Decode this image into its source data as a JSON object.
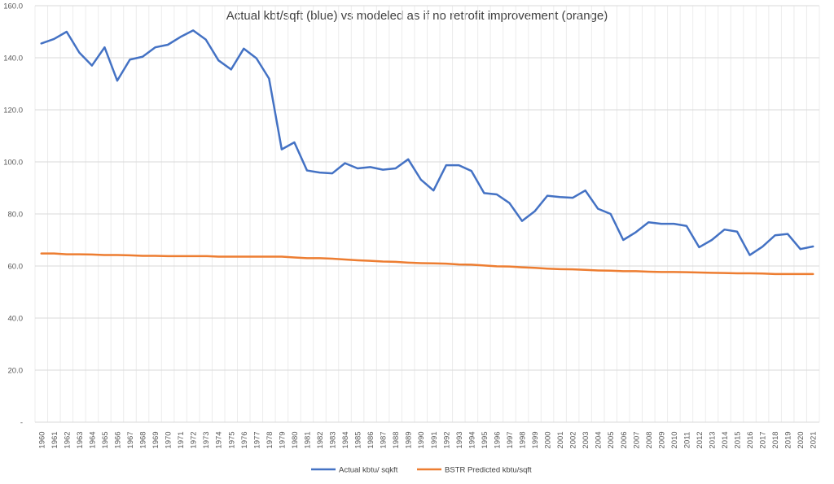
{
  "chart_data": {
    "type": "line",
    "title": "Actual kbt/sqft (blue) vs modeled as if no retrofit improvement (orange)",
    "xlabel": "",
    "ylabel": "",
    "ylim": [
      0,
      160
    ],
    "y_ticks": [
      "-",
      "20.0",
      "40.0",
      "60.0",
      "80.0",
      "100.0",
      "120.0",
      "140.0",
      "160.0"
    ],
    "grid": true,
    "legend_position": "bottom",
    "categories": [
      "1960",
      "1961",
      "1962",
      "1963",
      "1964",
      "1965",
      "1966",
      "1967",
      "1968",
      "1969",
      "1970",
      "1971",
      "1972",
      "1973",
      "1974",
      "1975",
      "1976",
      "1977",
      "1978",
      "1979",
      "1980",
      "1981",
      "1982",
      "1983",
      "1984",
      "1985",
      "1986",
      "1987",
      "1988",
      "1989",
      "1990",
      "1991",
      "1992",
      "1993",
      "1994",
      "1995",
      "1996",
      "1997",
      "1998",
      "1999",
      "2000",
      "2001",
      "2002",
      "2003",
      "2004",
      "2005",
      "2006",
      "2007",
      "2008",
      "2009",
      "2010",
      "2011",
      "2012",
      "2013",
      "2014",
      "2015",
      "2016",
      "2017",
      "2018",
      "2019",
      "2020",
      "2021"
    ],
    "series": [
      {
        "name": "Actual kbtu/ sqkft",
        "color": "#4472c4",
        "values": [
          145.5,
          147.2,
          150.0,
          142.0,
          137.0,
          144.0,
          131.2,
          139.3,
          140.4,
          144.0,
          145.0,
          148.0,
          150.5,
          147.0,
          139.0,
          135.5,
          143.5,
          139.8,
          132.0,
          104.8,
          107.5,
          96.7,
          95.9,
          95.6,
          99.5,
          97.5,
          98.0,
          97.0,
          97.5,
          101.0,
          93.2,
          89.0,
          98.7,
          98.7,
          96.5,
          88.0,
          87.5,
          84.2,
          77.3,
          81.0,
          87.0,
          86.5,
          86.2,
          89.0,
          82.0,
          80.0,
          70.0,
          73.0,
          76.8,
          76.2,
          76.2,
          75.4,
          67.2,
          70.0,
          74.0,
          73.2,
          64.2,
          67.4,
          71.8,
          72.3,
          66.5,
          67.5
        ]
      },
      {
        "name": "BSTR Predicted kbtu/sqft",
        "color": "#ed7d31",
        "values": [
          64.8,
          64.8,
          64.5,
          64.5,
          64.4,
          64.2,
          64.2,
          64.1,
          63.9,
          63.9,
          63.8,
          63.8,
          63.8,
          63.8,
          63.6,
          63.6,
          63.6,
          63.6,
          63.6,
          63.6,
          63.3,
          63.0,
          63.0,
          62.8,
          62.5,
          62.2,
          62.0,
          61.7,
          61.6,
          61.3,
          61.1,
          61.0,
          60.9,
          60.6,
          60.5,
          60.2,
          59.9,
          59.8,
          59.5,
          59.3,
          59.0,
          58.8,
          58.7,
          58.5,
          58.3,
          58.2,
          58.0,
          58.0,
          57.8,
          57.7,
          57.7,
          57.6,
          57.5,
          57.4,
          57.3,
          57.2,
          57.2,
          57.1,
          56.9,
          56.9,
          56.9,
          56.9
        ]
      }
    ]
  }
}
